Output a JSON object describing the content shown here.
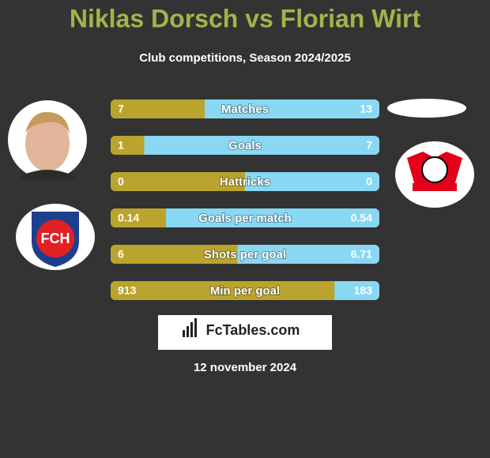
{
  "header": {
    "title": "Niklas Dorsch vs Florian Wirt",
    "subtitle": "Club competitions, Season 2024/2025"
  },
  "rows": [
    {
      "label": "Matches",
      "left": 7,
      "right": 13
    },
    {
      "label": "Goals",
      "left": 1,
      "right": 7
    },
    {
      "label": "Hattricks",
      "left": 0,
      "right": 0
    },
    {
      "label": "Goals per match",
      "left": 0.14,
      "right": 0.54
    },
    {
      "label": "Shots per goal",
      "left": 6,
      "right": 6.71
    },
    {
      "label": "Min per goal",
      "left": 913,
      "right": 183
    }
  ],
  "footer": {
    "brand": "FcTables.com",
    "date": "12 november 2024"
  }
}
